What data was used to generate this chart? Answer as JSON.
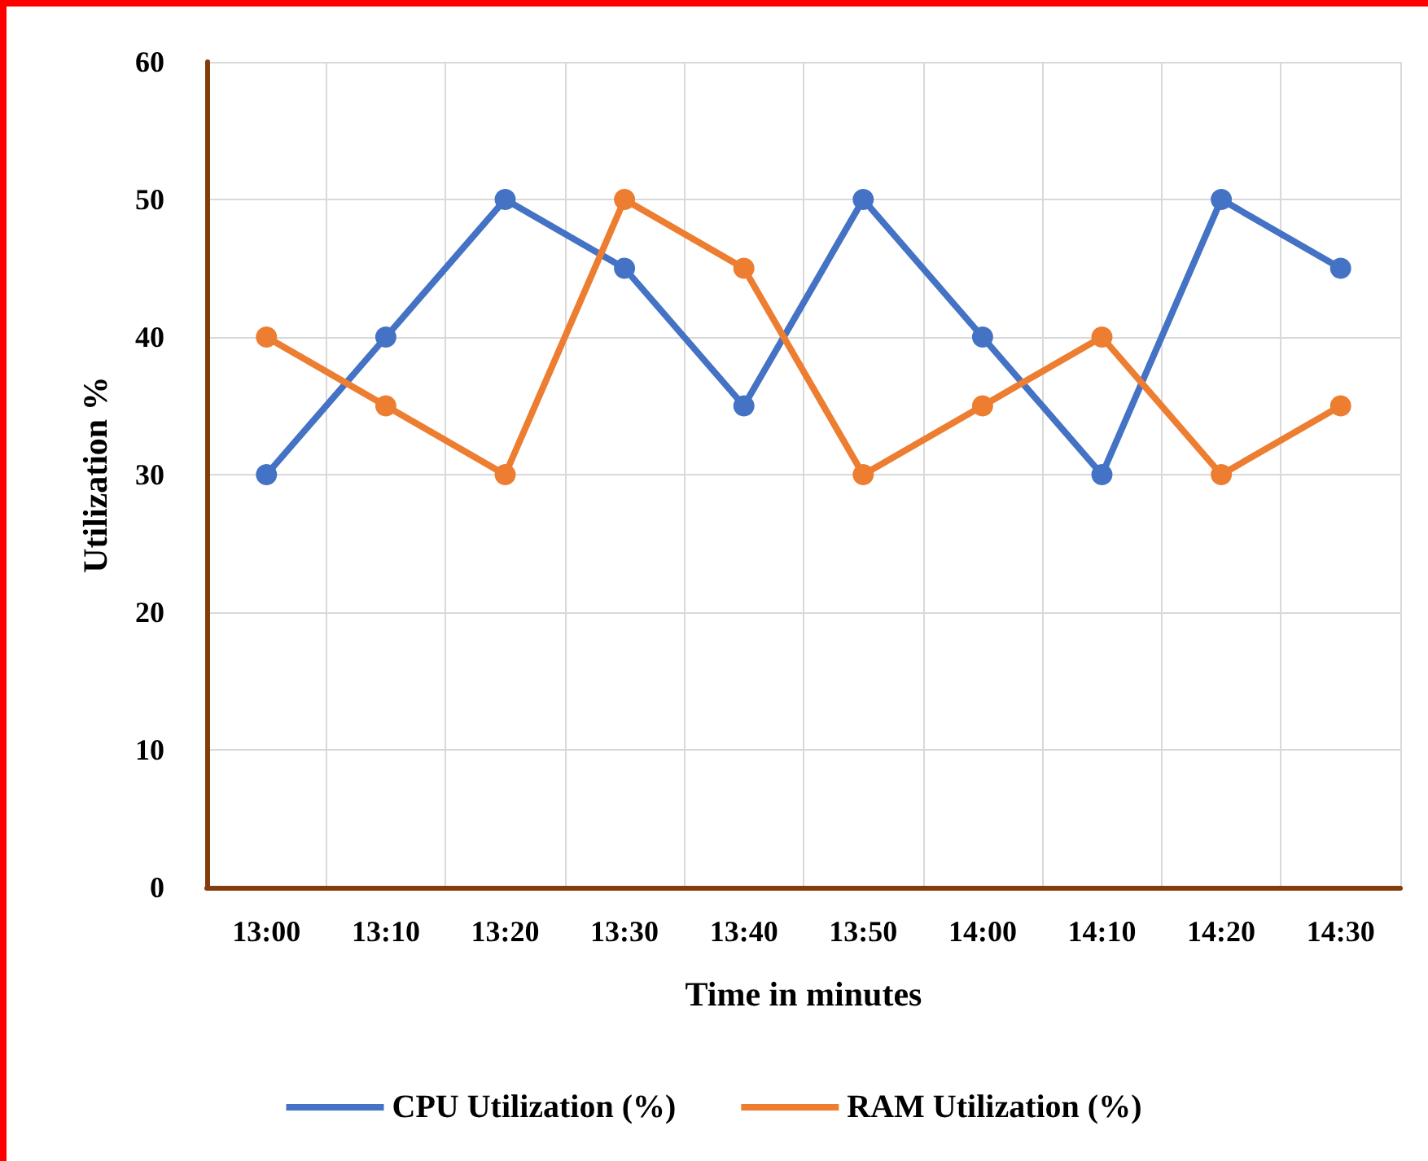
{
  "chart_data": {
    "type": "line",
    "xlabel": "Time in minutes",
    "ylabel": "Utilization %",
    "categories": [
      "13:00",
      "13:10",
      "13:20",
      "13:30",
      "13:40",
      "13:50",
      "14:00",
      "14:10",
      "14:20",
      "14:30"
    ],
    "series": [
      {
        "name": "CPU Utilization (%)",
        "color": "#4472c4",
        "values": [
          30,
          40,
          50,
          45,
          35,
          50,
          40,
          30,
          50,
          45
        ]
      },
      {
        "name": "RAM Utilization (%)",
        "color": "#ed7d31",
        "values": [
          40,
          35,
          30,
          50,
          45,
          30,
          35,
          40,
          30,
          35
        ]
      }
    ],
    "ylim": [
      0,
      60
    ],
    "yticks": [
      0,
      10,
      20,
      30,
      40,
      50,
      60
    ],
    "grid": true,
    "legend": "bottom",
    "marker": "circle",
    "line_style": "solid"
  }
}
